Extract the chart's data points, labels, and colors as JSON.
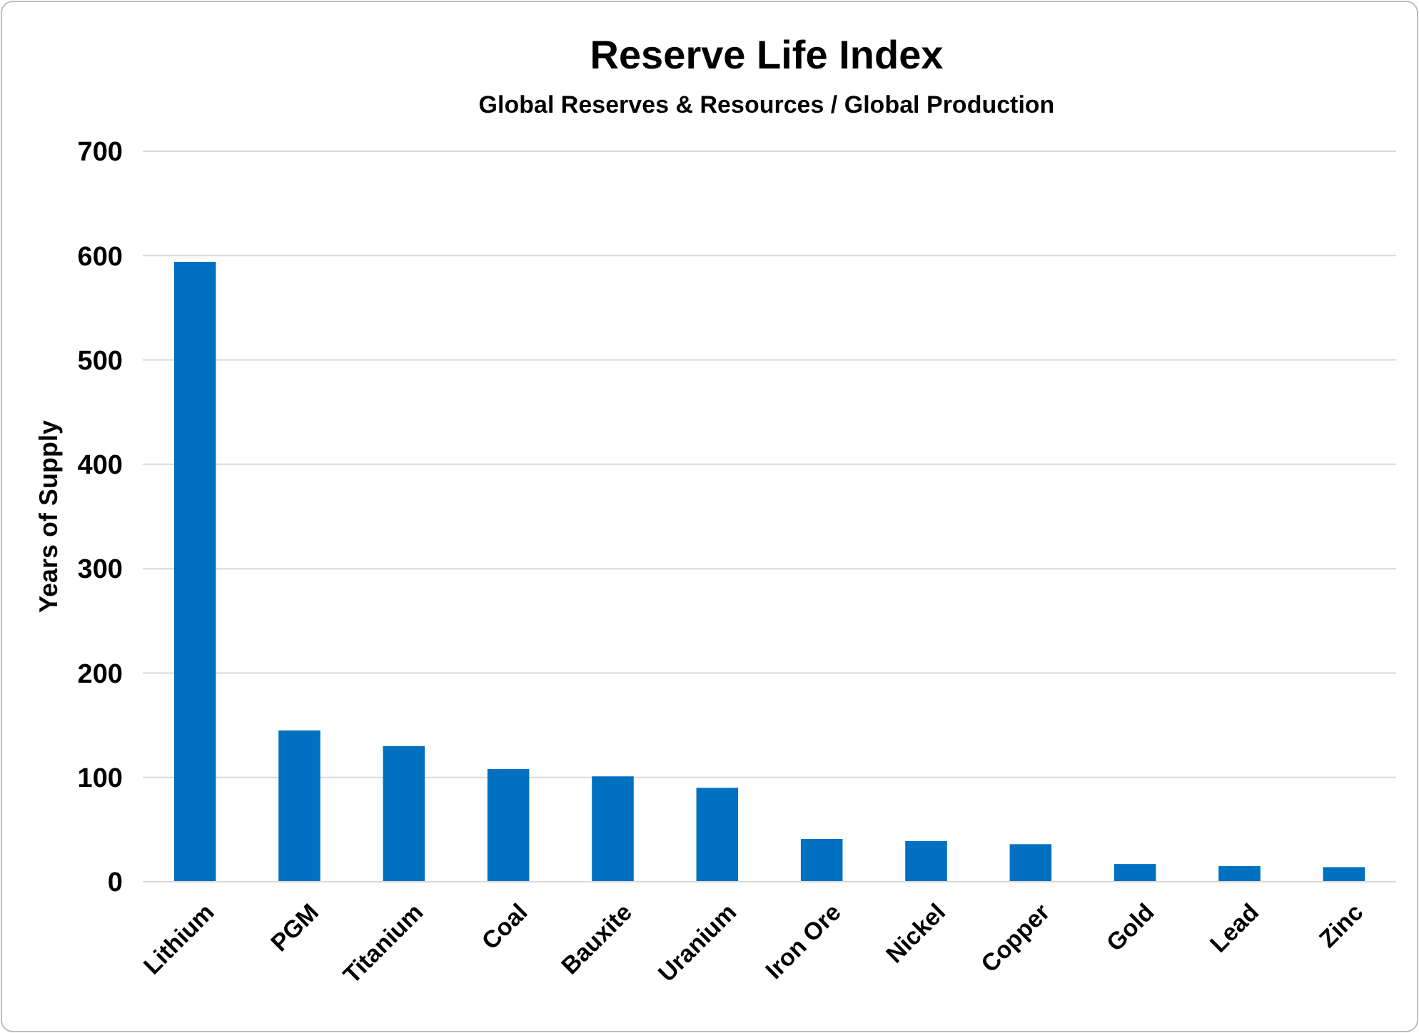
{
  "chart_data": {
    "type": "bar",
    "title": "Reserve Life Index",
    "subtitle": "Global Reserves & Resources / Global Production",
    "ylabel": "Years of Supply",
    "categories": [
      "Lithium",
      "PGM",
      "Titanium",
      "Coal",
      "Bauxite",
      "Uranium",
      "Iron Ore",
      "Nickel",
      "Copper",
      "Gold",
      "Lead",
      "Zinc"
    ],
    "values": [
      594,
      145,
      130,
      108,
      101,
      90,
      41,
      39,
      36,
      17,
      15,
      14
    ],
    "color": "#0070c0",
    "ylim": [
      0,
      700
    ],
    "yticks": [
      0,
      100,
      200,
      300,
      400,
      500,
      600,
      700
    ],
    "grid": "y"
  }
}
